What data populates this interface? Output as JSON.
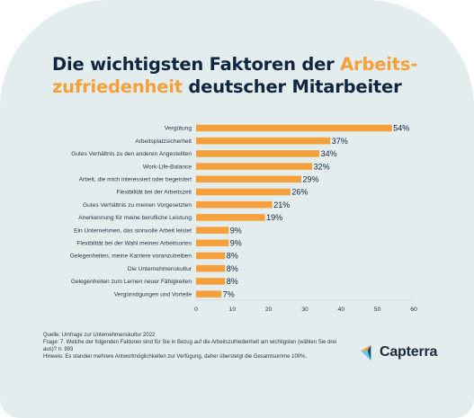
{
  "title": {
    "part1": "Die wichtigsten Faktoren der ",
    "highlight1": "Arbeits-",
    "highlight2": "zufriedenheit",
    "part2": " deutscher Mitarbeiter"
  },
  "colors": {
    "bar": "#f5a03a",
    "title_dark": "#10253f",
    "highlight": "#f5a03a",
    "background": "#e3eded",
    "logo_orange": "#ff9d28",
    "logo_blue": "#044d80",
    "logo_cyan": "#68c5ed"
  },
  "chart_data": {
    "type": "bar",
    "orientation": "horizontal",
    "categories": [
      "Vergütung",
      "Arbeitsplatzsicherheit",
      "Gutes Verhältnis zu den anderen Angestellten",
      "Work-Life-Balance",
      "Arbeit, die mich interessiert oder begeistert",
      "Flexibilität bei der Arbeitszeit",
      "Gutes Verhältnis zu meinen Vorgesetzten",
      "Anerkennung für meine berufliche Leistung",
      "Ein Unternehmen, das sinnvolle Arbeit leistet",
      "Flexibilität bei der Wahl meines Arbeitsortes",
      "Gelegenheiten, meine Karriere voranzutreiben",
      "Die Unternehmenskultur",
      "Gelegenheiten zum Lernen neuer Fähigkeiten",
      "Vergünstigungen und Vorteile"
    ],
    "values": [
      54,
      37,
      34,
      32,
      29,
      26,
      21,
      19,
      9,
      9,
      8,
      8,
      8,
      7
    ],
    "value_labels": [
      "54%",
      "37%",
      "34%",
      "32%",
      "29%",
      "26%",
      "21%",
      "19%",
      "9%",
      "9%",
      "8%",
      "8%",
      "8%",
      "7%"
    ],
    "xlim": [
      0,
      60
    ],
    "xticks": [
      0,
      10,
      20,
      30,
      40,
      50,
      60
    ],
    "grid": false
  },
  "footer": {
    "source": "Quelle: Umfrage zur Unternehmenskultur 2022",
    "question": "Frage: 7. Welche der folgenden Faktoren sind für Sie in Bezug auf die Arbeitszufriedenheit am wichtigsten (wählen Sie drei aus)? n: 993",
    "note": "Hinweis: Es standen mehrere Antwortmöglichkeiten zur Verfügung, daher übersteigt die Gesamtsumme 100%."
  },
  "logo": {
    "text": "Capterra",
    "icon": "capterra-arrow-icon"
  }
}
